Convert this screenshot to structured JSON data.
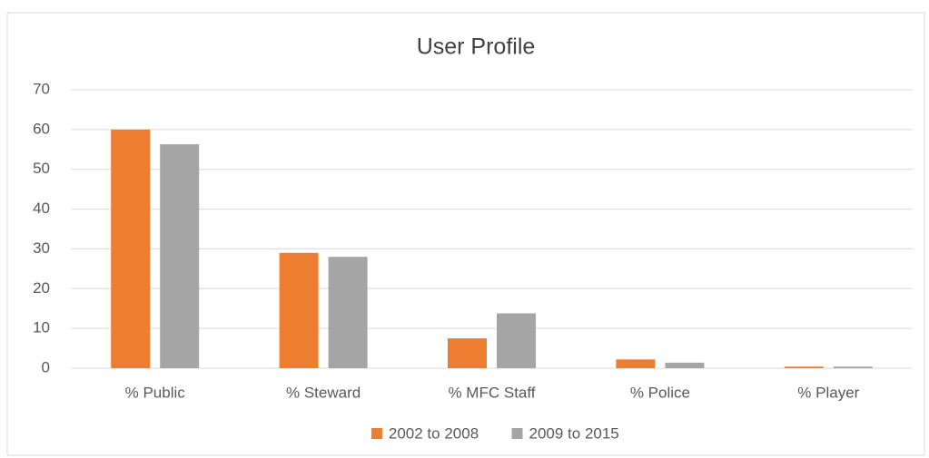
{
  "chart_data": {
    "type": "bar",
    "title": "User Profile",
    "categories": [
      "% Public",
      "% Steward",
      "% MFC Staff",
      "% Police",
      "% Player"
    ],
    "series": [
      {
        "name": "2002 to 2008",
        "color": "#ed7d31",
        "values": [
          60,
          29,
          7.5,
          2.2,
          0.4
        ]
      },
      {
        "name": "2009 to 2015",
        "color": "#a5a5a5",
        "values": [
          56.3,
          28,
          13.8,
          1.4,
          0.4
        ]
      }
    ],
    "ylim": [
      0,
      70
    ],
    "yticks": [
      0,
      10,
      20,
      30,
      40,
      50,
      60,
      70
    ],
    "grid": true,
    "legend": "bottom"
  }
}
